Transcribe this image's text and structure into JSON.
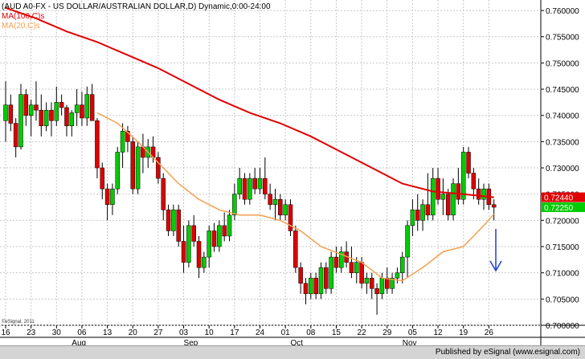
{
  "header": {
    "title": "(AUD A0-FX - US DOLLAR/AUSTRALIAN DOLLAR,D) Dynamic,0:00-24:00",
    "ma100_label": "MA(100,C)s",
    "ma20_label": "MA(20,C)s"
  },
  "watermark": "©eSignal, 2011",
  "footer": {
    "published": "Published by eSignal (www.esignal.com)"
  },
  "colors": {
    "up_candle": "#00cc00",
    "down_candle": "#dd0000",
    "ma100": "#e00000",
    "ma20": "#f5a050",
    "arrow": "#1a3fd0",
    "grid": "#c8c8c8",
    "last_price_badge": "#00cc00",
    "ma100_badge": "#e00000"
  },
  "chart_data": {
    "type": "candlestick",
    "ylim": [
      0.7,
      0.762
    ],
    "y_ticks": [
      "0.760000",
      "0.755000",
      "0.750000",
      "0.745000",
      "0.740000",
      "0.735000",
      "0.730000",
      "0.725000",
      "0.720000",
      "0.715000",
      "0.710000",
      "0.705000",
      "0.700000"
    ],
    "y_tick_values": [
      0.76,
      0.755,
      0.75,
      0.745,
      0.74,
      0.735,
      0.73,
      0.725,
      0.72,
      0.715,
      0.71,
      0.705,
      0.7
    ],
    "x_day_labels": [
      "16",
      "23",
      "30",
      "06",
      "13",
      "20",
      "27",
      "03",
      "10",
      "17",
      "24",
      "01",
      "08",
      "15",
      "22",
      "29",
      "05",
      "12",
      "19",
      "26"
    ],
    "x_day_label_bar_index": [
      0,
      5,
      10,
      15,
      20,
      25,
      30,
      35,
      40,
      45,
      50,
      55,
      60,
      65,
      70,
      75,
      80,
      85,
      90,
      95
    ],
    "x_month_labels": [
      "Aug",
      "Sep",
      "Oct",
      "Nov"
    ],
    "x_month_label_bar_index": [
      13,
      35,
      56,
      78
    ],
    "last_price_label": "0.72250",
    "ma100_value_label": "0.72440",
    "last_price": 0.7225,
    "ma100_value": 0.7244,
    "candles": [
      [
        0.739,
        0.7465,
        0.735,
        0.742
      ],
      [
        0.742,
        0.744,
        0.737,
        0.7385
      ],
      [
        0.7385,
        0.7395,
        0.732,
        0.734
      ],
      [
        0.734,
        0.746,
        0.7335,
        0.744
      ],
      [
        0.744,
        0.745,
        0.738,
        0.74
      ],
      [
        0.74,
        0.743,
        0.736,
        0.742
      ],
      [
        0.742,
        0.7465,
        0.739,
        0.741
      ],
      [
        0.741,
        0.744,
        0.736,
        0.738
      ],
      [
        0.738,
        0.7425,
        0.737,
        0.741
      ],
      [
        0.741,
        0.7425,
        0.736,
        0.739
      ],
      [
        0.739,
        0.7455,
        0.738,
        0.7425
      ],
      [
        0.7425,
        0.744,
        0.74,
        0.7415
      ],
      [
        0.7415,
        0.742,
        0.736,
        0.738
      ],
      [
        0.738,
        0.741,
        0.736,
        0.7405
      ],
      [
        0.7405,
        0.745,
        0.738,
        0.742
      ],
      [
        0.742,
        0.7445,
        0.738,
        0.7395
      ],
      [
        0.7395,
        0.7455,
        0.738,
        0.744
      ],
      [
        0.744,
        0.746,
        0.739,
        0.739
      ],
      [
        0.739,
        0.7395,
        0.728,
        0.73
      ],
      [
        0.73,
        0.731,
        0.724,
        0.726
      ],
      [
        0.726,
        0.727,
        0.72,
        0.723
      ],
      [
        0.723,
        0.727,
        0.721,
        0.726
      ],
      [
        0.726,
        0.734,
        0.725,
        0.733
      ],
      [
        0.733,
        0.7385,
        0.73,
        0.737
      ],
      [
        0.737,
        0.738,
        0.733,
        0.735
      ],
      [
        0.735,
        0.736,
        0.725,
        0.726
      ],
      [
        0.726,
        0.735,
        0.725,
        0.734
      ],
      [
        0.734,
        0.7365,
        0.729,
        0.732
      ],
      [
        0.732,
        0.7355,
        0.73,
        0.734
      ],
      [
        0.734,
        0.736,
        0.731,
        0.732
      ],
      [
        0.732,
        0.733,
        0.727,
        0.728
      ],
      [
        0.728,
        0.729,
        0.72,
        0.722
      ],
      [
        0.722,
        0.723,
        0.717,
        0.718
      ],
      [
        0.718,
        0.723,
        0.717,
        0.722
      ],
      [
        0.722,
        0.723,
        0.715,
        0.716
      ],
      [
        0.716,
        0.719,
        0.71,
        0.712
      ],
      [
        0.712,
        0.72,
        0.711,
        0.719
      ],
      [
        0.719,
        0.721,
        0.715,
        0.716
      ],
      [
        0.716,
        0.717,
        0.709,
        0.711
      ],
      [
        0.711,
        0.714,
        0.71,
        0.713
      ],
      [
        0.713,
        0.719,
        0.711,
        0.718
      ],
      [
        0.718,
        0.7195,
        0.714,
        0.715
      ],
      [
        0.715,
        0.72,
        0.714,
        0.719
      ],
      [
        0.719,
        0.7215,
        0.716,
        0.717
      ],
      [
        0.717,
        0.722,
        0.716,
        0.721
      ],
      [
        0.721,
        0.727,
        0.72,
        0.725
      ],
      [
        0.725,
        0.73,
        0.724,
        0.728
      ],
      [
        0.728,
        0.729,
        0.723,
        0.724
      ],
      [
        0.724,
        0.729,
        0.723,
        0.728
      ],
      [
        0.728,
        0.73,
        0.725,
        0.726
      ],
      [
        0.726,
        0.73,
        0.725,
        0.728
      ],
      [
        0.728,
        0.732,
        0.724,
        0.725
      ],
      [
        0.725,
        0.727,
        0.722,
        0.723
      ],
      [
        0.723,
        0.726,
        0.72,
        0.724
      ],
      [
        0.724,
        0.725,
        0.72,
        0.721
      ],
      [
        0.721,
        0.724,
        0.72,
        0.723
      ],
      [
        0.723,
        0.724,
        0.717,
        0.718
      ],
      [
        0.718,
        0.719,
        0.71,
        0.711
      ],
      [
        0.711,
        0.712,
        0.706,
        0.708
      ],
      [
        0.708,
        0.709,
        0.704,
        0.706
      ],
      [
        0.706,
        0.71,
        0.705,
        0.709
      ],
      [
        0.709,
        0.71,
        0.705,
        0.706
      ],
      [
        0.706,
        0.712,
        0.705,
        0.711
      ],
      [
        0.711,
        0.712,
        0.706,
        0.707
      ],
      [
        0.707,
        0.714,
        0.706,
        0.713
      ],
      [
        0.713,
        0.715,
        0.71,
        0.711
      ],
      [
        0.711,
        0.715,
        0.71,
        0.714
      ],
      [
        0.714,
        0.716,
        0.711,
        0.712
      ],
      [
        0.712,
        0.715,
        0.709,
        0.71
      ],
      [
        0.71,
        0.713,
        0.708,
        0.712
      ],
      [
        0.712,
        0.713,
        0.707,
        0.708
      ],
      [
        0.708,
        0.71,
        0.706,
        0.709
      ],
      [
        0.709,
        0.71,
        0.705,
        0.707
      ],
      [
        0.707,
        0.708,
        0.702,
        0.706
      ],
      [
        0.706,
        0.71,
        0.705,
        0.709
      ],
      [
        0.709,
        0.711,
        0.706,
        0.707
      ],
      [
        0.707,
        0.71,
        0.706,
        0.709
      ],
      [
        0.709,
        0.711,
        0.708,
        0.71
      ],
      [
        0.71,
        0.714,
        0.708,
        0.713
      ],
      [
        0.713,
        0.72,
        0.709,
        0.719
      ],
      [
        0.719,
        0.724,
        0.717,
        0.722
      ],
      [
        0.722,
        0.725,
        0.718,
        0.72
      ],
      [
        0.72,
        0.724,
        0.718,
        0.723
      ],
      [
        0.723,
        0.729,
        0.72,
        0.721
      ],
      [
        0.721,
        0.73,
        0.72,
        0.728
      ],
      [
        0.728,
        0.73,
        0.723,
        0.724
      ],
      [
        0.724,
        0.728,
        0.721,
        0.725
      ],
      [
        0.725,
        0.726,
        0.72,
        0.721
      ],
      [
        0.721,
        0.728,
        0.72,
        0.727
      ],
      [
        0.727,
        0.73,
        0.723,
        0.724
      ],
      [
        0.724,
        0.734,
        0.723,
        0.733
      ],
      [
        0.733,
        0.734,
        0.728,
        0.729
      ],
      [
        0.729,
        0.73,
        0.724,
        0.726
      ],
      [
        0.726,
        0.728,
        0.723,
        0.724
      ],
      [
        0.724,
        0.727,
        0.722,
        0.726
      ],
      [
        0.726,
        0.727,
        0.722,
        0.723
      ],
      [
        0.723,
        0.724,
        0.72,
        0.7225
      ]
    ],
    "ma100": [
      [
        0,
        0.7605
      ],
      [
        6,
        0.7585
      ],
      [
        12,
        0.756
      ],
      [
        18,
        0.754
      ],
      [
        24,
        0.7515
      ],
      [
        30,
        0.749
      ],
      [
        36,
        0.746
      ],
      [
        42,
        0.743
      ],
      [
        48,
        0.7405
      ],
      [
        54,
        0.7385
      ],
      [
        60,
        0.736
      ],
      [
        66,
        0.733
      ],
      [
        72,
        0.73
      ],
      [
        78,
        0.727
      ],
      [
        84,
        0.7255
      ],
      [
        90,
        0.725
      ],
      [
        96,
        0.7244
      ]
    ],
    "ma20": [
      [
        18,
        0.7405
      ],
      [
        22,
        0.7385
      ],
      [
        26,
        0.735
      ],
      [
        30,
        0.731
      ],
      [
        34,
        0.727
      ],
      [
        38,
        0.724
      ],
      [
        42,
        0.722
      ],
      [
        46,
        0.721
      ],
      [
        50,
        0.721
      ],
      [
        54,
        0.72
      ],
      [
        58,
        0.718
      ],
      [
        62,
        0.715
      ],
      [
        66,
        0.7135
      ],
      [
        70,
        0.712
      ],
      [
        74,
        0.709
      ],
      [
        78,
        0.7085
      ],
      [
        82,
        0.711
      ],
      [
        86,
        0.714
      ],
      [
        90,
        0.715
      ],
      [
        94,
        0.719
      ],
      [
        96,
        0.7212
      ]
    ]
  }
}
